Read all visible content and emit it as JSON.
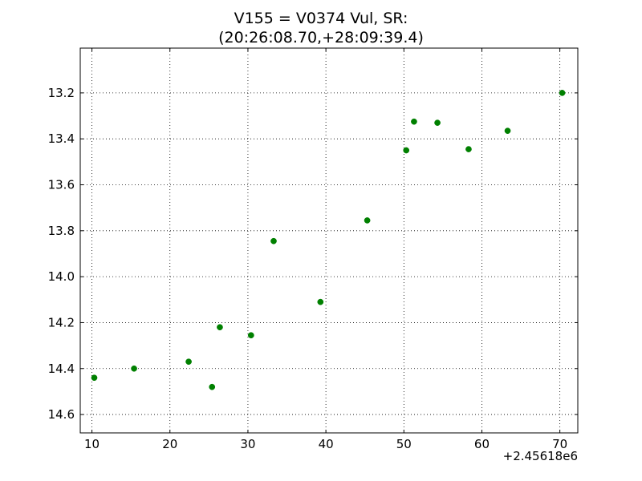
{
  "chart_data": {
    "type": "scatter",
    "title_line1": "V155 = V0374 Vul, SR:",
    "title_line2": "(20:26:08.70,+28:09:39.4)",
    "x_offset_label": "+2.45618e6",
    "xlim": [
      8.5,
      72.3
    ],
    "ylim": [
      14.68,
      13.005
    ],
    "y_inverted": true,
    "grid": true,
    "marker_color": "#008000",
    "x_ticks": [
      10,
      20,
      30,
      40,
      50,
      60,
      70
    ],
    "x_tick_labels": [
      "10",
      "20",
      "30",
      "40",
      "50",
      "60",
      "70"
    ],
    "y_ticks": [
      13.2,
      13.4,
      13.6,
      13.8,
      14.0,
      14.2,
      14.4,
      14.6
    ],
    "y_tick_labels": [
      "13.2",
      "13.4",
      "13.6",
      "13.8",
      "14.0",
      "14.2",
      "14.4",
      "14.6"
    ],
    "points": [
      {
        "x": 10.3,
        "y": 14.44
      },
      {
        "x": 15.4,
        "y": 14.4
      },
      {
        "x": 22.4,
        "y": 14.37
      },
      {
        "x": 25.4,
        "y": 14.48
      },
      {
        "x": 26.4,
        "y": 14.22
      },
      {
        "x": 30.4,
        "y": 14.255
      },
      {
        "x": 33.3,
        "y": 13.845
      },
      {
        "x": 39.3,
        "y": 14.11
      },
      {
        "x": 45.3,
        "y": 13.755
      },
      {
        "x": 50.3,
        "y": 13.45
      },
      {
        "x": 51.3,
        "y": 13.325
      },
      {
        "x": 54.3,
        "y": 13.33
      },
      {
        "x": 58.3,
        "y": 13.445
      },
      {
        "x": 63.3,
        "y": 13.365
      },
      {
        "x": 70.3,
        "y": 13.2
      }
    ]
  }
}
